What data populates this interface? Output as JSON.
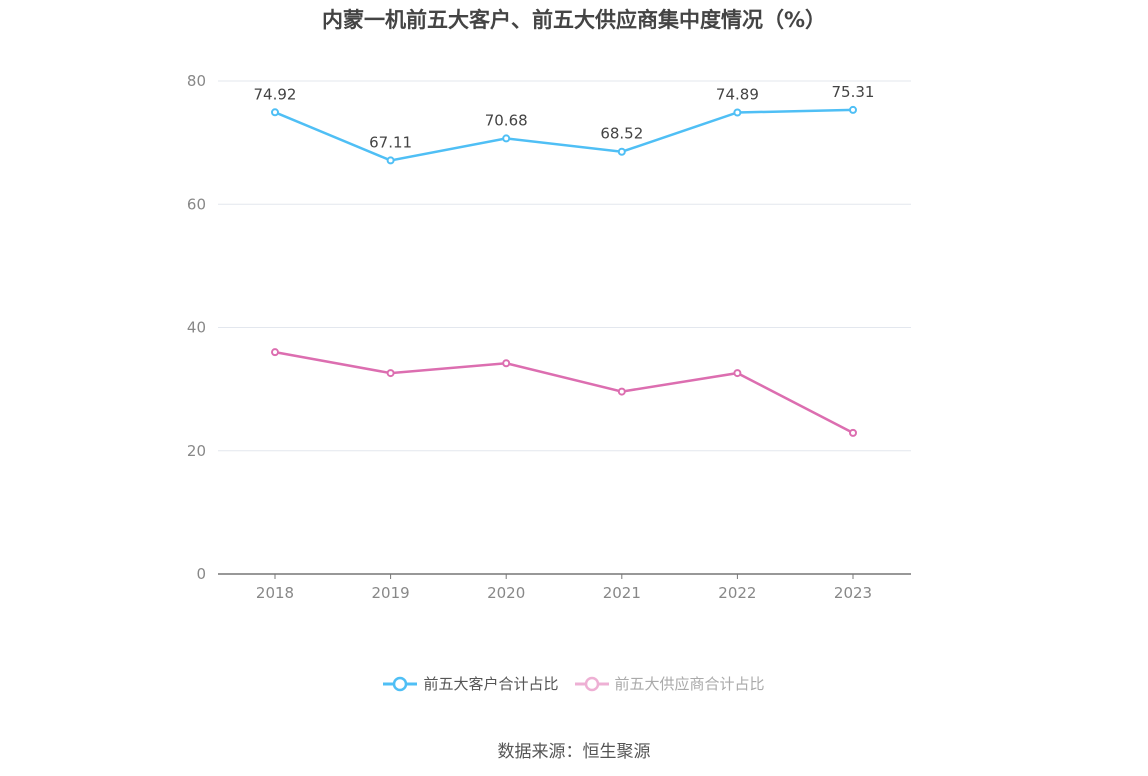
{
  "title": "内蒙一机前五大客户、前五大供应商集中度情况（%）",
  "source": "数据来源：恒生聚源",
  "chart_data": {
    "type": "line",
    "title": "内蒙一机前五大客户、前五大供应商集中度情况（%）",
    "categories": [
      "2018",
      "2019",
      "2020",
      "2021",
      "2022",
      "2023"
    ],
    "ylim": [
      0,
      80
    ],
    "yticks": [
      0,
      20,
      40,
      60,
      80
    ],
    "grid": true,
    "legend_position": "bottom",
    "series": [
      {
        "name": "前五大客户合计占比",
        "color": "#4fbff5",
        "values": [
          74.92,
          67.11,
          70.68,
          68.52,
          74.89,
          75.31
        ],
        "labels": [
          "74.92",
          "67.11",
          "70.68",
          "68.52",
          "74.89",
          "75.31"
        ],
        "legend_dimmed": false
      },
      {
        "name": "前五大供应商合计占比",
        "color": "#dc6eb0",
        "values": [
          36.0,
          32.6,
          34.2,
          29.6,
          32.6,
          22.9
        ],
        "legend_dimmed": true
      }
    ]
  }
}
